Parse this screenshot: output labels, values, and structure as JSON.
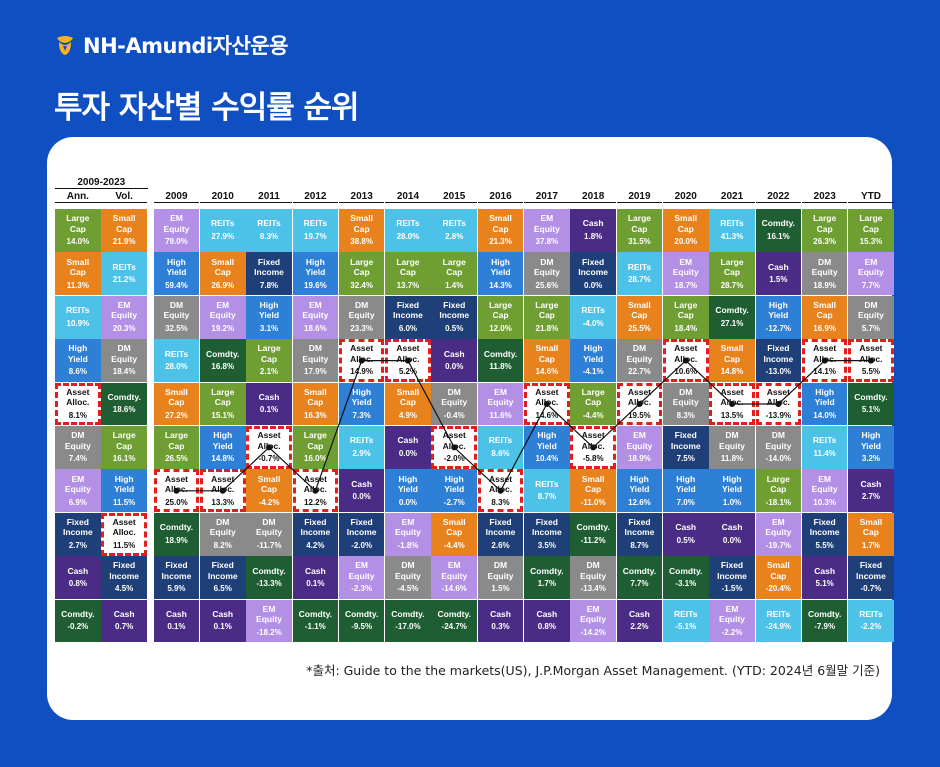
{
  "brand": {
    "name": "NH-Amundi자산운용",
    "icon": "nh-logo-icon"
  },
  "title": "투자 자산별 수익률 순위",
  "source_note": "*출처: Guide to the the markets(US), J.P.Morgan Asset Management. (YTD: 2024년 6월말 기준)",
  "colors": {
    "background": "#0f4fc2",
    "highlight_border": "#e31c1c"
  },
  "asset_colors": {
    "Large Cap": "#6f9e33",
    "Small Cap": "#e8821d",
    "EM Equity": "#b48fe6",
    "DM Equity": "#8a8a8a",
    "REITs": "#4cc2e8",
    "High Yield": "#2e7fd6",
    "Fixed Income": "#1f3f78",
    "Comdty.": "#1f5e32",
    "Cash": "#4a2c86",
    "Asset Alloc.": "#ffffff"
  },
  "summary_group_label": "2009-2023",
  "columns": [
    "Ann.",
    "Vol.",
    "2009",
    "2010",
    "2011",
    "2012",
    "2013",
    "2014",
    "2015",
    "2016",
    "2017",
    "2018",
    "2019",
    "2020",
    "2021",
    "2022",
    "2023",
    "YTD"
  ],
  "grid": [
    [
      [
        "Large Cap",
        "14.0%"
      ],
      [
        "Small Cap",
        "21.9%"
      ],
      [
        "EM Equity",
        "79.0%"
      ],
      [
        "REITs",
        "27.9%"
      ],
      [
        "REITs",
        "8.3%"
      ],
      [
        "REITs",
        "19.7%"
      ],
      [
        "Small Cap",
        "38.8%"
      ],
      [
        "REITs",
        "28.0%"
      ],
      [
        "REITs",
        "2.8%"
      ],
      [
        "Small Cap",
        "21.3%"
      ],
      [
        "EM Equity",
        "37.8%"
      ],
      [
        "Cash",
        "1.8%"
      ],
      [
        "Large Cap",
        "31.5%"
      ],
      [
        "Small Cap",
        "20.0%"
      ],
      [
        "REITs",
        "41.3%"
      ],
      [
        "Comdty.",
        "16.1%"
      ],
      [
        "Large Cap",
        "26.3%"
      ],
      [
        "Large Cap",
        "15.3%"
      ]
    ],
    [
      [
        "Small Cap",
        "11.3%"
      ],
      [
        "REITs",
        "21.2%"
      ],
      [
        "High Yield",
        "59.4%"
      ],
      [
        "Small Cap",
        "26.9%"
      ],
      [
        "Fixed Income",
        "7.8%"
      ],
      [
        "High Yield",
        "19.6%"
      ],
      [
        "Large Cap",
        "32.4%"
      ],
      [
        "Large Cap",
        "13.7%"
      ],
      [
        "Large Cap",
        "1.4%"
      ],
      [
        "High Yield",
        "14.3%"
      ],
      [
        "DM Equity",
        "25.6%"
      ],
      [
        "Fixed Income",
        "0.0%"
      ],
      [
        "REITs",
        "28.7%"
      ],
      [
        "EM Equity",
        "18.7%"
      ],
      [
        "Large Cap",
        "28.7%"
      ],
      [
        "Cash",
        "1.5%"
      ],
      [
        "DM Equity",
        "18.9%"
      ],
      [
        "EM Equity",
        "7.7%"
      ]
    ],
    [
      [
        "REITs",
        "10.9%"
      ],
      [
        "EM Equity",
        "20.3%"
      ],
      [
        "DM Equity",
        "32.5%"
      ],
      [
        "EM Equity",
        "19.2%"
      ],
      [
        "High Yield",
        "3.1%"
      ],
      [
        "EM Equity",
        "18.6%"
      ],
      [
        "DM Equity",
        "23.3%"
      ],
      [
        "Fixed Income",
        "6.0%"
      ],
      [
        "Fixed Income",
        "0.5%"
      ],
      [
        "Large Cap",
        "12.0%"
      ],
      [
        "Large Cap",
        "21.8%"
      ],
      [
        "REITs",
        "-4.0%"
      ],
      [
        "Small Cap",
        "25.5%"
      ],
      [
        "Large Cap",
        "18.4%"
      ],
      [
        "Comdty.",
        "27.1%"
      ],
      [
        "High Yield",
        "-12.7%"
      ],
      [
        "Small Cap",
        "16.9%"
      ],
      [
        "DM Equity",
        "5.7%"
      ]
    ],
    [
      [
        "High Yield",
        "8.6%"
      ],
      [
        "DM Equity",
        "18.4%"
      ],
      [
        "REITs",
        "28.0%"
      ],
      [
        "Comdty.",
        "16.8%"
      ],
      [
        "Large Cap",
        "2.1%"
      ],
      [
        "DM Equity",
        "17.9%"
      ],
      [
        "Asset Alloc.",
        "14.9%"
      ],
      [
        "Asset Alloc.",
        "5.2%"
      ],
      [
        "Cash",
        "0.0%"
      ],
      [
        "Comdty.",
        "11.8%"
      ],
      [
        "Small Cap",
        "14.6%"
      ],
      [
        "High Yield",
        "-4.1%"
      ],
      [
        "DM Equity",
        "22.7%"
      ],
      [
        "Asset Alloc.",
        "10.6%"
      ],
      [
        "Small Cap",
        "14.8%"
      ],
      [
        "Fixed Income",
        "-13.0%"
      ],
      [
        "Asset Alloc.",
        "14.1%"
      ],
      [
        "Asset Alloc.",
        "5.5%"
      ]
    ],
    [
      [
        "Asset Alloc.",
        "8.1%"
      ],
      [
        "Comdty.",
        "18.6%"
      ],
      [
        "Small Cap",
        "27.2%"
      ],
      [
        "Large Cap",
        "15.1%"
      ],
      [
        "Cash",
        "0.1%"
      ],
      [
        "Small Cap",
        "16.3%"
      ],
      [
        "High Yield",
        "7.3%"
      ],
      [
        "Small Cap",
        "4.9%"
      ],
      [
        "DM Equity",
        "-0.4%"
      ],
      [
        "EM Equity",
        "11.6%"
      ],
      [
        "Asset Alloc.",
        "14.6%"
      ],
      [
        "Large Cap",
        "-4.4%"
      ],
      [
        "Asset Alloc.",
        "19.5%"
      ],
      [
        "DM Equity",
        "8.3%"
      ],
      [
        "Asset Alloc.",
        "13.5%"
      ],
      [
        "Asset Alloc.",
        "-13.9%"
      ],
      [
        "High Yield",
        "14.0%"
      ],
      [
        "Comdty.",
        "5.1%"
      ]
    ],
    [
      [
        "DM Equity",
        "7.4%"
      ],
      [
        "Large Cap",
        "16.1%"
      ],
      [
        "Large Cap",
        "26.5%"
      ],
      [
        "High Yield",
        "14.8%"
      ],
      [
        "Asset Alloc.",
        "-0.7%"
      ],
      [
        "Large Cap",
        "16.0%"
      ],
      [
        "REITs",
        "2.9%"
      ],
      [
        "Cash",
        "0.0%"
      ],
      [
        "Asset Alloc.",
        "-2.0%"
      ],
      [
        "REITs",
        "8.6%"
      ],
      [
        "High Yield",
        "10.4%"
      ],
      [
        "Asset Alloc.",
        "-5.8%"
      ],
      [
        "EM Equity",
        "18.9%"
      ],
      [
        "Fixed Income",
        "7.5%"
      ],
      [
        "DM Equity",
        "11.8%"
      ],
      [
        "DM Equity",
        "-14.0%"
      ],
      [
        "REITs",
        "11.4%"
      ],
      [
        "High Yield",
        "3.2%"
      ]
    ],
    [
      [
        "EM Equity",
        "6.9%"
      ],
      [
        "High Yield",
        "11.5%"
      ],
      [
        "Asset Alloc.",
        "25.0%"
      ],
      [
        "Asset Alloc.",
        "13.3%"
      ],
      [
        "Small Cap",
        "-4.2%"
      ],
      [
        "Asset Alloc.",
        "12.2%"
      ],
      [
        "Cash",
        "0.0%"
      ],
      [
        "High Yield",
        "0.0%"
      ],
      [
        "High Yield",
        "-2.7%"
      ],
      [
        "Asset Alloc.",
        "8.3%"
      ],
      [
        "REITs",
        "8.7%"
      ],
      [
        "Small Cap",
        "-11.0%"
      ],
      [
        "High Yield",
        "12.6%"
      ],
      [
        "High Yield",
        "7.0%"
      ],
      [
        "High Yield",
        "1.0%"
      ],
      [
        "Large Cap",
        "-18.1%"
      ],
      [
        "EM Equity",
        "10.3%"
      ],
      [
        "Cash",
        "2.7%"
      ]
    ],
    [
      [
        "Fixed Income",
        "2.7%"
      ],
      [
        "Asset Alloc.",
        "11.5%"
      ],
      [
        "Comdty.",
        "18.9%"
      ],
      [
        "DM Equity",
        "8.2%"
      ],
      [
        "DM Equity",
        "-11.7%"
      ],
      [
        "Fixed Income",
        "4.2%"
      ],
      [
        "Fixed Income",
        "-2.0%"
      ],
      [
        "EM Equity",
        "-1.8%"
      ],
      [
        "Small Cap",
        "-4.4%"
      ],
      [
        "Fixed Income",
        "2.6%"
      ],
      [
        "Fixed Income",
        "3.5%"
      ],
      [
        "Comdty.",
        "-11.2%"
      ],
      [
        "Fixed Income",
        "8.7%"
      ],
      [
        "Cash",
        "0.5%"
      ],
      [
        "Cash",
        "0.0%"
      ],
      [
        "EM Equity",
        "-19.7%"
      ],
      [
        "Fixed Income",
        "5.5%"
      ],
      [
        "Small Cap",
        "1.7%"
      ]
    ],
    [
      [
        "Cash",
        "0.8%"
      ],
      [
        "Fixed Income",
        "4.5%"
      ],
      [
        "Fixed Income",
        "5.9%"
      ],
      [
        "Fixed Income",
        "6.5%"
      ],
      [
        "Comdty.",
        "-13.3%"
      ],
      [
        "Cash",
        "0.1%"
      ],
      [
        "EM Equity",
        "-2.3%"
      ],
      [
        "DM Equity",
        "-4.5%"
      ],
      [
        "EM Equity",
        "-14.6%"
      ],
      [
        "DM Equity",
        "1.5%"
      ],
      [
        "Comdty.",
        "1.7%"
      ],
      [
        "DM Equity",
        "-13.4%"
      ],
      [
        "Comdty.",
        "7.7%"
      ],
      [
        "Comdty.",
        "-3.1%"
      ],
      [
        "Fixed Income",
        "-1.5%"
      ],
      [
        "Small Cap",
        "-20.4%"
      ],
      [
        "Cash",
        "5.1%"
      ],
      [
        "Fixed Income",
        "-0.7%"
      ]
    ],
    [
      [
        "Comdty.",
        "-0.2%"
      ],
      [
        "Cash",
        "0.7%"
      ],
      [
        "Cash",
        "0.1%"
      ],
      [
        "Cash",
        "0.1%"
      ],
      [
        "EM Equity",
        "-18.2%"
      ],
      [
        "Comdty.",
        "-1.1%"
      ],
      [
        "Comdty.",
        "-9.5%"
      ],
      [
        "Comdty.",
        "-17.0%"
      ],
      [
        "Comdty.",
        "-24.7%"
      ],
      [
        "Cash",
        "0.3%"
      ],
      [
        "Cash",
        "0.8%"
      ],
      [
        "EM Equity",
        "-14.2%"
      ],
      [
        "Cash",
        "2.2%"
      ],
      [
        "REITs",
        "-5.1%"
      ],
      [
        "EM Equity",
        "-2.2%"
      ],
      [
        "REITs",
        "-24.9%"
      ],
      [
        "Comdty.",
        "-7.9%"
      ],
      [
        "REITs",
        "-2.2%"
      ]
    ]
  ]
}
